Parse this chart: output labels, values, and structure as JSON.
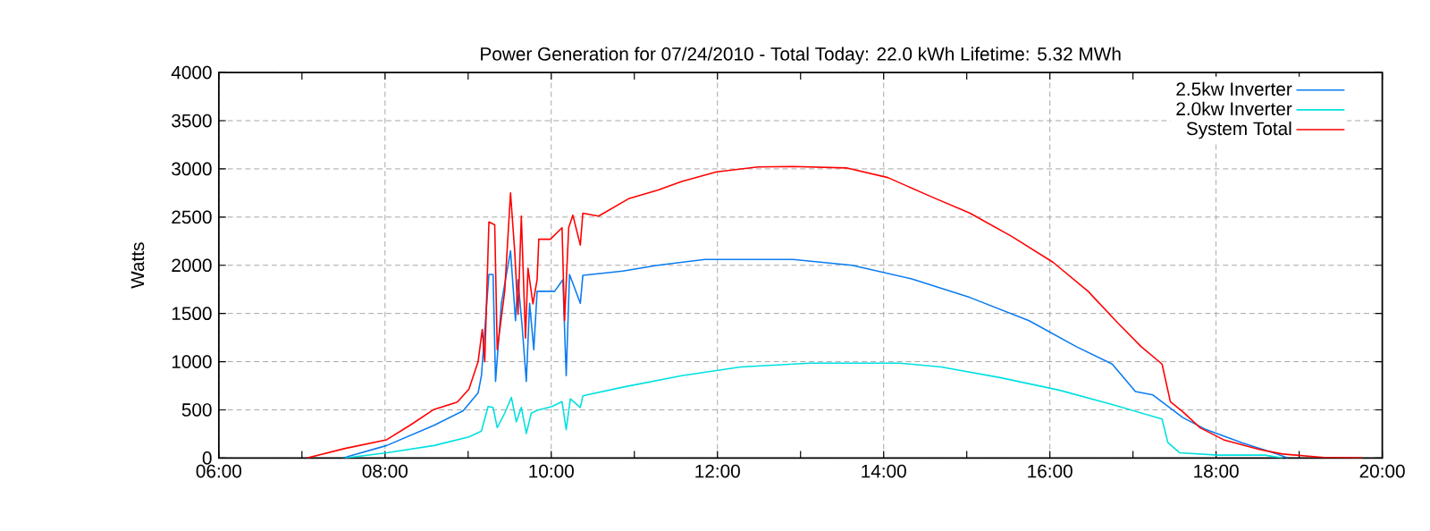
{
  "chart_data": {
    "type": "line",
    "title": "Power Generation for 07/24/2010 - Total Today: 22.0 kWh   Lifetime: 5.32 MWh",
    "ylabel": "Watts",
    "xlim": [
      6,
      20
    ],
    "ylim": [
      0,
      4000
    ],
    "xticks": [
      {
        "value": 6,
        "label": "06:00"
      },
      {
        "value": 7,
        "label": null
      },
      {
        "value": 8,
        "label": "08:00"
      },
      {
        "value": 9,
        "label": null
      },
      {
        "value": 10,
        "label": "10:00"
      },
      {
        "value": 11,
        "label": null
      },
      {
        "value": 12,
        "label": "12:00"
      },
      {
        "value": 13,
        "label": null
      },
      {
        "value": 14,
        "label": "14:00"
      },
      {
        "value": 15,
        "label": null
      },
      {
        "value": 16,
        "label": "16:00"
      },
      {
        "value": 17,
        "label": null
      },
      {
        "value": 18,
        "label": "18:00"
      },
      {
        "value": 19,
        "label": null
      },
      {
        "value": 20,
        "label": "20:00"
      }
    ],
    "yticks": [
      0,
      500,
      1000,
      1500,
      2000,
      2500,
      3000,
      3500,
      4000
    ],
    "grid": true,
    "legend": "top right",
    "series": [
      {
        "name": "2.5kw Inverter",
        "color": "#0a7cf0",
        "x": [
          7.49,
          8.02,
          8.59,
          8.94,
          9.12,
          9.16,
          9.25,
          9.3,
          9.33,
          9.4,
          9.51,
          9.57,
          9.6,
          9.65,
          9.7,
          9.74,
          9.79,
          9.83,
          9.85,
          10.04,
          10.14,
          10.18,
          10.22,
          10.35,
          10.38,
          10.86,
          11.28,
          11.85,
          12.91,
          13.62,
          14.33,
          15.04,
          15.75,
          16.32,
          16.75,
          17.03,
          17.24,
          17.6,
          17.88,
          18.31,
          18.73,
          18.87
        ],
        "values": [
          0,
          130,
          340,
          490,
          675,
          855,
          1905,
          1905,
          795,
          1605,
          2150,
          1425,
          1850,
          1365,
          795,
          1605,
          1125,
          1730,
          1730,
          1730,
          1850,
          855,
          1905,
          1605,
          1895,
          1940,
          2000,
          2060,
          2060,
          2000,
          1860,
          1665,
          1425,
          1155,
          975,
          690,
          655,
          420,
          295,
          160,
          42,
          0
        ]
      },
      {
        "name": "2.0kw Inverter",
        "color": "#00e0e0",
        "x": [
          7.52,
          8.02,
          8.59,
          9.01,
          9.16,
          9.24,
          9.3,
          9.35,
          9.44,
          9.52,
          9.58,
          9.64,
          9.7,
          9.76,
          9.83,
          10.01,
          10.13,
          10.18,
          10.23,
          10.35,
          10.38,
          10.86,
          11.57,
          12.28,
          13.11,
          14.19,
          14.69,
          15.4,
          16.11,
          16.75,
          17.35,
          17.42,
          17.56,
          18.02,
          18.59,
          18.8
        ],
        "values": [
          0,
          55,
          130,
          220,
          280,
          535,
          525,
          315,
          465,
          630,
          375,
          525,
          255,
          465,
          495,
          535,
          585,
          295,
          615,
          525,
          645,
          735,
          855,
          945,
          985,
          985,
          945,
          835,
          705,
          555,
          405,
          160,
          55,
          30,
          30,
          0
        ]
      },
      {
        "name": "System Total",
        "color": "#ff0000",
        "x": [
          7.06,
          7.52,
          8.02,
          8.3,
          8.59,
          8.87,
          9.01,
          9.12,
          9.17,
          9.2,
          9.25,
          9.32,
          9.35,
          9.44,
          9.51,
          9.56,
          9.6,
          9.64,
          9.69,
          9.72,
          9.78,
          9.83,
          9.85,
          9.99,
          10.13,
          10.16,
          10.21,
          10.26,
          10.35,
          10.38,
          10.57,
          10.93,
          11.28,
          11.57,
          11.99,
          12.49,
          12.91,
          13.55,
          14.05,
          14.55,
          15.04,
          15.54,
          16.04,
          16.46,
          16.82,
          17.1,
          17.35,
          17.45,
          17.6,
          17.81,
          18.09,
          18.52,
          18.8,
          19.3,
          19.76
        ],
        "values": [
          0,
          100,
          190,
          340,
          505,
          580,
          715,
          1000,
          1335,
          1000,
          2450,
          2420,
          1125,
          1730,
          2750,
          2150,
          1490,
          2510,
          1245,
          1970,
          1600,
          1850,
          2270,
          2270,
          2390,
          1425,
          2390,
          2520,
          2210,
          2540,
          2510,
          2690,
          2780,
          2870,
          2970,
          3020,
          3025,
          3010,
          2910,
          2720,
          2540,
          2300,
          2030,
          1730,
          1400,
          1155,
          975,
          585,
          480,
          313,
          190,
          90,
          42,
          6,
          0
        ]
      }
    ]
  }
}
